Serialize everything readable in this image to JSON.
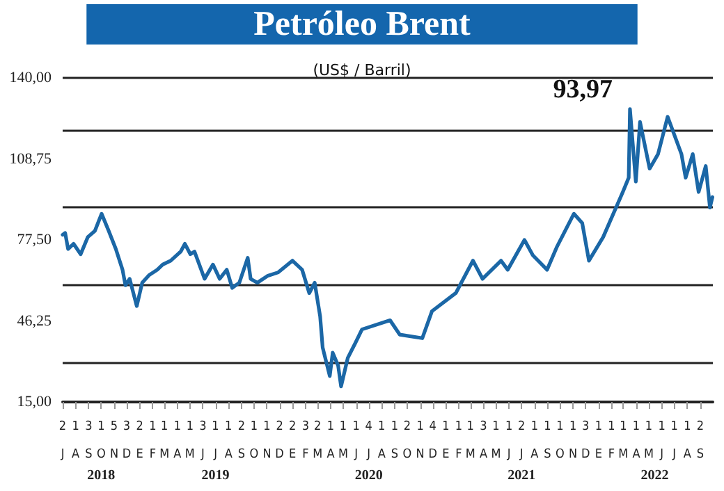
{
  "chart_data": {
    "type": "line",
    "title": "Petróleo Brent",
    "subtitle": "(US$ / Barril)",
    "annotations": [
      "93,97"
    ],
    "x": [
      "2018-07-01",
      "2018-07-07",
      "2018-07-14",
      "2018-07-27",
      "2018-08-13",
      "2018-08-30",
      "2018-09-16",
      "2018-10-02",
      "2018-10-19",
      "2018-11-05",
      "2018-11-21",
      "2018-11-28",
      "2018-12-08",
      "2018-12-25",
      "2019-01-07",
      "2019-01-24",
      "2019-02-12",
      "2019-02-25",
      "2019-03-16",
      "2019-04-09",
      "2019-04-19",
      "2019-05-02",
      "2019-05-12",
      "2019-06-05",
      "2019-06-25",
      "2019-07-11",
      "2019-07-28",
      "2019-08-10",
      "2019-08-27",
      "2019-09-16",
      "2019-09-23",
      "2019-10-09",
      "2019-11-02",
      "2019-11-28",
      "2020-01-01",
      "2020-01-24",
      "2020-02-10",
      "2020-02-23",
      "2020-03-07",
      "2020-03-13",
      "2020-03-30",
      "2020-04-06",
      "2020-04-19",
      "2020-04-26",
      "2020-05-12",
      "2020-05-29",
      "2020-06-15",
      "2020-08-21",
      "2020-09-13",
      "2020-11-06",
      "2020-11-29",
      "2021-01-25",
      "2021-03-07",
      "2021-03-30",
      "2021-05-13",
      "2021-05-29",
      "2021-07-08",
      "2021-07-28",
      "2021-08-31",
      "2021-09-24",
      "2021-11-03",
      "2021-11-23",
      "2021-12-09",
      "2022-01-12",
      "2022-02-28",
      "2022-03-14",
      "2022-03-17",
      "2022-03-31",
      "2022-04-10",
      "2022-05-03",
      "2022-05-23",
      "2022-06-15",
      "2022-07-18",
      "2022-07-28",
      "2022-08-14",
      "2022-08-28",
      "2022-09-14",
      "2022-09-24",
      "2022-09-30"
    ],
    "series": [
      {
        "color": "#1b67a6",
        "values": [
          79.5,
          80.2,
          74,
          76,
          72,
          78.6,
          81,
          87.6,
          81,
          74,
          66,
          60,
          62.5,
          52,
          61,
          64,
          66,
          68,
          69.5,
          73,
          76,
          72,
          73,
          62.5,
          68,
          62.5,
          66,
          59,
          61,
          70.6,
          62.5,
          61,
          63.6,
          65,
          69.5,
          66,
          57,
          61,
          48,
          36,
          25,
          34,
          29,
          21,
          32,
          37.4,
          43,
          46.5,
          41,
          39.6,
          50,
          57,
          69.5,
          62.5,
          69.5,
          66,
          77.5,
          71.6,
          66,
          75,
          87.6,
          84,
          69.5,
          78.6,
          96,
          101.5,
          128,
          100,
          123,
          105,
          110.6,
          125,
          110.6,
          101.5,
          110.6,
          96,
          106,
          90,
          94
        ]
      }
    ],
    "xlim": [
      "2018-07-01",
      "2022-10-01"
    ],
    "xticks": [
      {
        "value": "2018-07-01",
        "label": "2\nJ"
      },
      {
        "value": "2018-08-01",
        "label": "1\nA"
      },
      {
        "value": "2018-09-01",
        "label": "3\nS"
      },
      {
        "value": "2018-10-01",
        "label": "1\nO"
      },
      {
        "value": "2018-11-01",
        "label": "5\nN"
      },
      {
        "value": "2018-12-01",
        "label": "3\nD"
      },
      {
        "value": "2019-01-01",
        "label": "2\nE"
      },
      {
        "value": "2019-02-01",
        "label": "1\nF"
      },
      {
        "value": "2019-03-01",
        "label": "1\nM"
      },
      {
        "value": "2019-04-01",
        "label": "1\nA"
      },
      {
        "value": "2019-05-01",
        "label": "1\nM"
      },
      {
        "value": "2019-06-01",
        "label": "3\nJ"
      },
      {
        "value": "2019-07-01",
        "label": "1\nJ"
      },
      {
        "value": "2019-08-01",
        "label": "1\nA"
      },
      {
        "value": "2019-09-01",
        "label": "2\nS"
      },
      {
        "value": "2019-10-01",
        "label": "1\nO"
      },
      {
        "value": "2019-11-01",
        "label": "1\nN"
      },
      {
        "value": "2019-12-01",
        "label": "2\nD"
      },
      {
        "value": "2020-01-01",
        "label": "2\nE"
      },
      {
        "value": "2020-02-01",
        "label": "3\nF"
      },
      {
        "value": "2020-03-01",
        "label": "2\nM"
      },
      {
        "value": "2020-04-01",
        "label": "1\nA"
      },
      {
        "value": "2020-05-01",
        "label": "1\nM"
      },
      {
        "value": "2020-06-01",
        "label": "1\nJ"
      },
      {
        "value": "2020-07-01",
        "label": "4\nJ"
      },
      {
        "value": "2020-08-01",
        "label": "1\nA"
      },
      {
        "value": "2020-09-01",
        "label": "1\nS"
      },
      {
        "value": "2020-10-01",
        "label": "2\nO"
      },
      {
        "value": "2020-11-01",
        "label": "1\nN"
      },
      {
        "value": "2020-12-01",
        "label": "4\nD"
      },
      {
        "value": "2021-01-01",
        "label": "1\nE"
      },
      {
        "value": "2021-02-01",
        "label": "1\nF"
      },
      {
        "value": "2021-03-01",
        "label": "1\nM"
      },
      {
        "value": "2021-04-01",
        "label": "3\nA"
      },
      {
        "value": "2021-05-01",
        "label": "1\nM"
      },
      {
        "value": "2021-06-01",
        "label": "1\nJ"
      },
      {
        "value": "2021-07-01",
        "label": "2\nJ"
      },
      {
        "value": "2021-08-01",
        "label": "1\nA"
      },
      {
        "value": "2021-09-01",
        "label": "1\nS"
      },
      {
        "value": "2021-10-01",
        "label": "1\nO"
      },
      {
        "value": "2021-11-01",
        "label": "1\nN"
      },
      {
        "value": "2021-12-01",
        "label": "3\nD"
      },
      {
        "value": "2022-01-01",
        "label": "1\nE"
      },
      {
        "value": "2022-02-01",
        "label": "1\nF"
      },
      {
        "value": "2022-03-01",
        "label": "1\nM"
      },
      {
        "value": "2022-04-01",
        "label": "1\nA"
      },
      {
        "value": "2022-05-01",
        "label": "1\nM"
      },
      {
        "value": "2022-06-01",
        "label": "1\nJ"
      },
      {
        "value": "2022-07-01",
        "label": "1\nJ"
      },
      {
        "value": "2022-08-01",
        "label": "1\nA"
      },
      {
        "value": "2022-09-01",
        "label": "2\nS"
      }
    ],
    "x2lim": [
      "2018-07-01",
      "2022-10-01"
    ],
    "x2ticks": [
      {
        "value": "2018-10-01",
        "label": "2018"
      },
      {
        "value": "2019-07-01",
        "label": "2019"
      },
      {
        "value": "2020-07-01",
        "label": "2020"
      },
      {
        "value": "2021-07-01",
        "label": "2021"
      },
      {
        "value": "2022-05-15",
        "label": "2022"
      }
    ],
    "ylim": [
      15,
      140
    ],
    "yticks": [
      {
        "value": 15,
        "label": "15,00"
      },
      {
        "value": 46.25,
        "label": "46,25"
      },
      {
        "value": 77.5,
        "label": "77,50"
      },
      {
        "value": 108.75,
        "label": "108,75"
      },
      {
        "value": 140,
        "label": "140,00"
      }
    ],
    "grid": "y",
    "marker": "none",
    "line_style": "solid"
  }
}
